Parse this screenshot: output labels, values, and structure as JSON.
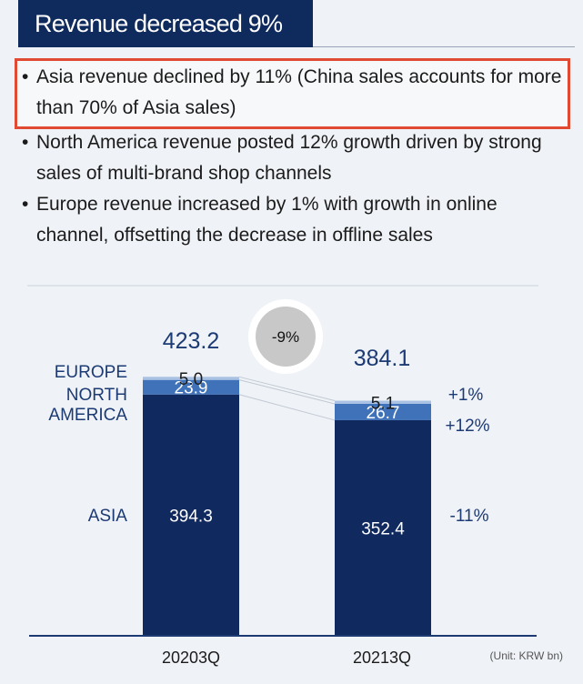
{
  "header": {
    "title": "Revenue decreased 9%"
  },
  "bullets": [
    "Asia revenue declined by 11% (China sales accounts for more than 70% of Asia sales)",
    "North America revenue posted 12% growth driven by strong sales of multi-brand shop channels",
    "Europe revenue increased by 1% with growth in online channel, offsetting the decrease in offline sales"
  ],
  "chart_data": {
    "type": "bar",
    "stacked": true,
    "categories": [
      "2020 3Q",
      "2021 3Q"
    ],
    "series": [
      {
        "name": "ASIA",
        "values": [
          394.3,
          352.4
        ],
        "growth": "-11%",
        "color": "#10295f"
      },
      {
        "name": "NORTH AMERICA",
        "values": [
          23.9,
          26.7
        ],
        "growth": "+12%",
        "color": "#3f72b8"
      },
      {
        "name": "EUROPE",
        "values": [
          5.0,
          5.1
        ],
        "growth": "+1%",
        "color": "#a9c2e3"
      }
    ],
    "value_labels": [
      [
        "394.3",
        "352.4"
      ],
      [
        "23.9",
        "26.7"
      ],
      [
        "5.0",
        "5.1"
      ]
    ],
    "totals": [
      423.2,
      384.1
    ],
    "total_labels": [
      "423.2",
      "384.1"
    ],
    "change_badge": "-9%",
    "category_labels": [
      "20203Q",
      "20213Q"
    ],
    "legend_labels": {
      "europe": "EUROPE",
      "north_america_1": "NORTH",
      "north_america_2": "AMERICA",
      "asia": "ASIA"
    },
    "unit_note": "(Unit: KRW bn)",
    "ylim": [
      0,
      440
    ]
  },
  "colors": {
    "title_bg": "#0f2a5c",
    "accent": "#e04a33",
    "text_blue": "#1c3a74"
  }
}
